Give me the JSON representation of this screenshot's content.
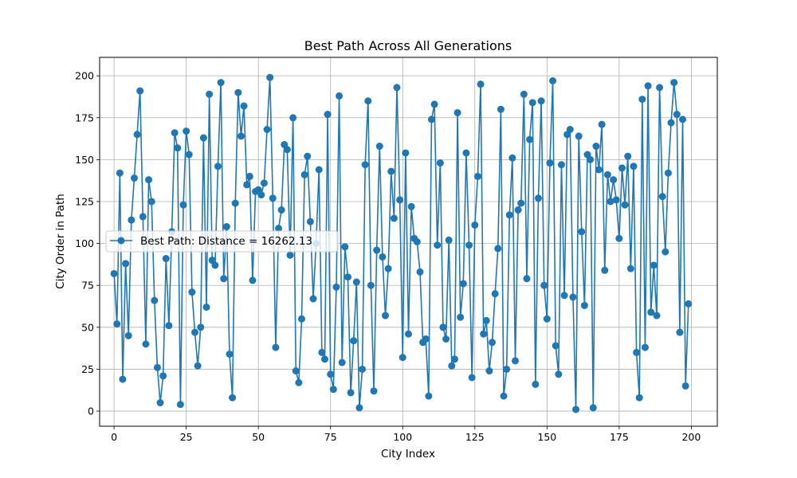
{
  "chart_data": {
    "type": "line",
    "title": "Best Path Across All Generations",
    "xlabel": "City Index",
    "ylabel": "City Order in Path",
    "xlim": [
      -5,
      209
    ],
    "ylim": [
      -9,
      211
    ],
    "xticks": [
      0,
      25,
      50,
      75,
      100,
      125,
      150,
      175,
      200
    ],
    "yticks": [
      0,
      25,
      50,
      75,
      100,
      125,
      150,
      175,
      200
    ],
    "xtick_labels": [
      "0",
      "25",
      "50",
      "75",
      "100",
      "125",
      "150",
      "175",
      "200"
    ],
    "ytick_labels": [
      "0",
      "25",
      "50",
      "75",
      "100",
      "125",
      "150",
      "175",
      "200"
    ],
    "grid": true,
    "legend_position": "center-left",
    "color": "#1f77b4",
    "marker": "circle",
    "series": [
      {
        "name": "Best Path: Distance = 16262.13",
        "values": [
          82,
          52,
          142,
          19,
          88,
          45,
          114,
          139,
          165,
          191,
          116,
          40,
          138,
          125,
          66,
          26,
          5,
          21,
          91,
          51,
          107,
          166,
          157,
          4,
          123,
          167,
          153,
          71,
          47,
          27,
          50,
          163,
          62,
          189,
          90,
          87,
          146,
          196,
          79,
          110,
          34,
          8,
          124,
          190,
          164,
          182,
          135,
          140,
          78,
          131,
          132,
          129,
          136,
          168,
          199,
          127,
          38,
          109,
          120,
          159,
          156,
          93,
          175,
          24,
          17,
          55,
          141,
          152,
          113,
          67,
          100,
          144,
          35,
          31,
          177,
          22,
          13,
          74,
          188,
          29,
          98,
          80,
          11,
          42,
          77,
          2,
          25,
          147,
          185,
          75,
          12,
          96,
          158,
          92,
          57,
          85,
          143,
          115,
          193,
          126,
          32,
          154,
          46,
          122,
          103,
          101,
          83,
          41,
          43,
          9,
          174,
          183,
          99,
          148,
          50,
          43,
          102,
          27,
          31,
          178,
          56,
          76,
          154,
          99,
          20,
          111,
          140,
          195,
          46,
          54,
          24,
          41,
          70,
          97,
          180,
          9,
          25,
          117,
          151,
          30,
          120,
          124,
          189,
          79,
          162,
          184,
          16,
          127,
          185,
          75,
          55,
          148,
          197,
          39,
          22,
          147,
          69,
          165,
          168,
          68,
          1,
          164,
          107,
          63,
          153,
          150,
          2,
          158,
          144,
          171,
          84,
          141,
          125,
          138,
          126,
          103,
          145,
          123,
          152,
          85,
          146,
          35,
          8,
          186,
          38,
          194,
          59,
          87,
          57,
          193,
          128,
          95,
          142,
          172,
          196,
          177,
          47,
          174,
          15,
          64
        ]
      }
    ]
  }
}
